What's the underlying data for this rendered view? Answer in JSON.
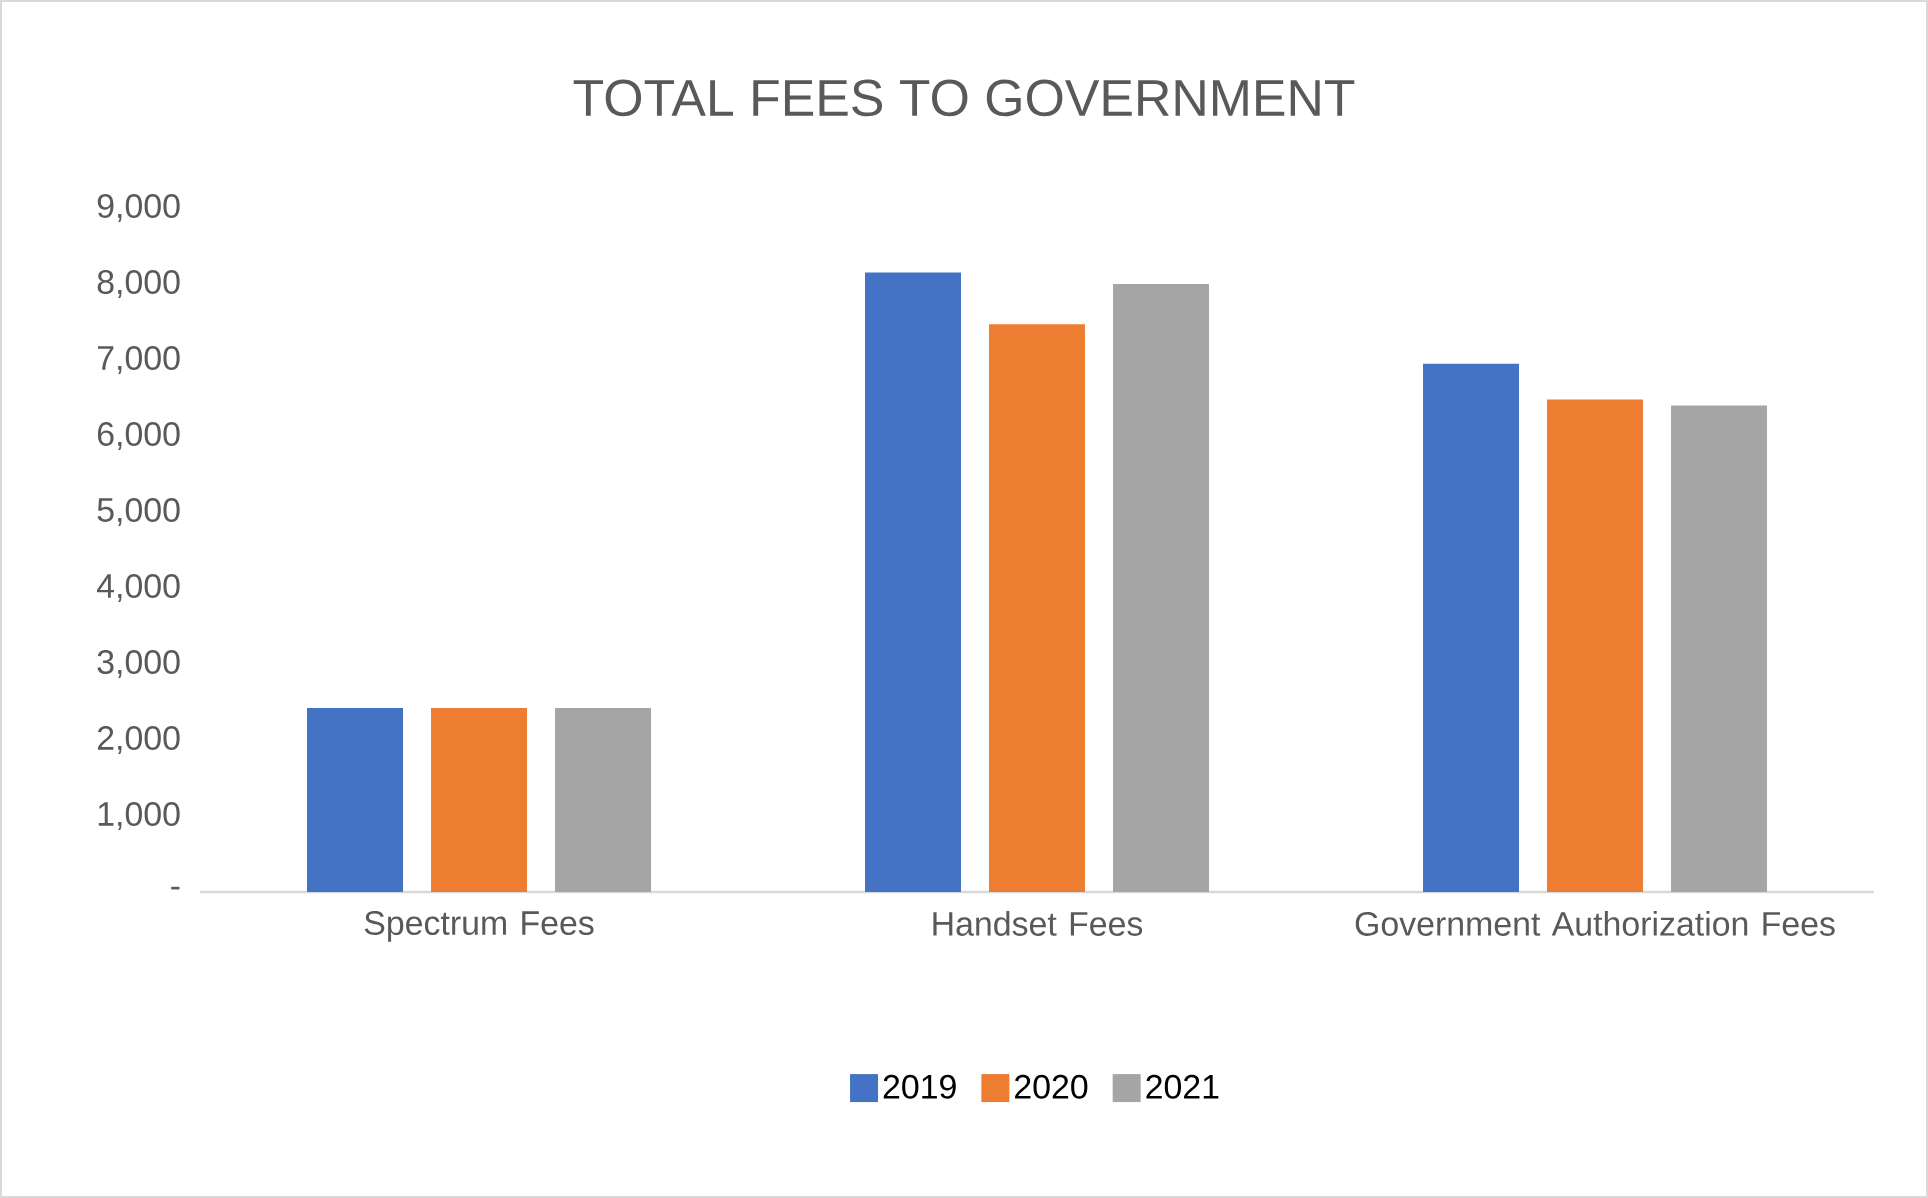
{
  "chart_data": {
    "type": "bar",
    "title": "TOTAL FEES TO GOVERNMENT",
    "categories": [
      "Spectrum Fees",
      "Handset Fees",
      "Government Authorization Fees"
    ],
    "series": [
      {
        "name": "2019",
        "color": "#4472c4",
        "values": [
          2420,
          8150,
          6950
        ]
      },
      {
        "name": "2020",
        "color": "#ed7d31",
        "values": [
          2420,
          7470,
          6480
        ]
      },
      {
        "name": "2021",
        "color": "#a5a5a5",
        "values": [
          2420,
          8000,
          6400
        ]
      }
    ],
    "ylim": [
      0,
      9000
    ],
    "yticks": [
      {
        "value": 0,
        "label": "-"
      },
      {
        "value": 1000,
        "label": "1,000"
      },
      {
        "value": 2000,
        "label": "2,000"
      },
      {
        "value": 3000,
        "label": "3,000"
      },
      {
        "value": 4000,
        "label": "4,000"
      },
      {
        "value": 5000,
        "label": "5,000"
      },
      {
        "value": 6000,
        "label": "6,000"
      },
      {
        "value": 7000,
        "label": "7,000"
      },
      {
        "value": 8000,
        "label": "8,000"
      },
      {
        "value": 9000,
        "label": "9,000"
      }
    ],
    "legend": "bottom"
  }
}
